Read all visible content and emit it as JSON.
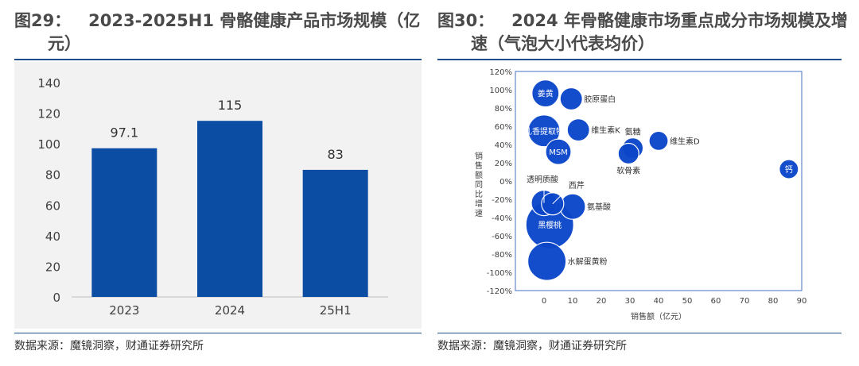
{
  "left": {
    "fig_label": "图29：",
    "title_line1": "2023-2025H1 骨骼健康产品市场规模（亿",
    "title_line2": "元）",
    "source": "数据来源：魔镜洞察，财通证券研究所"
  },
  "right": {
    "fig_label": "图30：",
    "title_line1": "2024 年骨骼健康市场重点成分市场规模及增",
    "title_line2": "速（气泡大小代表均价）",
    "source": "数据来源：魔镜洞察，财通证券研究所"
  },
  "colors": {
    "bar": "#0a4da3",
    "bubble": "#0b46c9",
    "rule": "#1f4e8c"
  },
  "chart_data": [
    {
      "type": "bar",
      "title": "2023-2025H1 骨骼健康产品市场规模（亿元）",
      "categories": [
        "2023",
        "2024",
        "25H1"
      ],
      "values": [
        97.1,
        115,
        83
      ],
      "value_labels": [
        "97.1",
        "115",
        "83"
      ],
      "ylim": [
        0,
        140
      ],
      "yticks": [
        0,
        20,
        40,
        60,
        80,
        100,
        120,
        140
      ],
      "xlabel": "",
      "ylabel": ""
    },
    {
      "type": "scatter",
      "title": "2024 年骨骼健康市场重点成分市场规模及增速（气泡大小代表均价）",
      "xlabel": "销售额（亿元）",
      "ylabel": "销售额同比增速",
      "xlim": [
        -10,
        90
      ],
      "ylim": [
        -120,
        120
      ],
      "xticks": [
        0,
        10,
        20,
        30,
        40,
        50,
        60,
        70,
        80,
        90
      ],
      "yticks": [
        -120,
        -100,
        -80,
        -60,
        -40,
        -20,
        0,
        20,
        40,
        60,
        80,
        100,
        120
      ],
      "ytick_labels": [
        "-120%",
        "-100%",
        "-80%",
        "-60%",
        "-40%",
        "-20%",
        "0%",
        "20%",
        "40%",
        "60%",
        "80%",
        "100%",
        "120%"
      ],
      "points": [
        {
          "name": "姜黄",
          "x": 0.5,
          "y": 96,
          "size": 17,
          "label_pos": "inside"
        },
        {
          "name": "胶原蛋白",
          "x": 9.5,
          "y": 90,
          "size": 14,
          "label_pos": "right"
        },
        {
          "name": "乳香提取物",
          "x": 0,
          "y": 55,
          "size": 20,
          "label_pos": "inside"
        },
        {
          "name": "维生素K",
          "x": 12,
          "y": 56,
          "size": 14,
          "label_pos": "right"
        },
        {
          "name": "MSM",
          "x": 5,
          "y": 32,
          "size": 16,
          "label_pos": "inside"
        },
        {
          "name": "氨糖",
          "x": 31,
          "y": 36,
          "size": 13,
          "label_pos": "top"
        },
        {
          "name": "软骨素",
          "x": 29.5,
          "y": 30,
          "size": 13,
          "label_pos": "bottom"
        },
        {
          "name": "维生素D",
          "x": 40,
          "y": 44,
          "size": 12,
          "label_pos": "right"
        },
        {
          "name": "钙",
          "x": 85.5,
          "y": 13,
          "size": 12,
          "label_pos": "inside"
        },
        {
          "name": "透明质酸",
          "x": 0,
          "y": -24,
          "size": 16,
          "label_pos": "top-left"
        },
        {
          "name": "西芹",
          "x": 3,
          "y": -25,
          "size": 14,
          "label_pos": "top-right"
        },
        {
          "name": "氨基酸",
          "x": 10,
          "y": -28,
          "size": 16,
          "label_pos": "right"
        },
        {
          "name": "黑樱桃",
          "x": 2,
          "y": -48,
          "size": 30,
          "label_pos": "inside"
        },
        {
          "name": "水解蛋黄粉",
          "x": 1,
          "y": -88,
          "size": 24,
          "label_pos": "right"
        }
      ]
    }
  ]
}
